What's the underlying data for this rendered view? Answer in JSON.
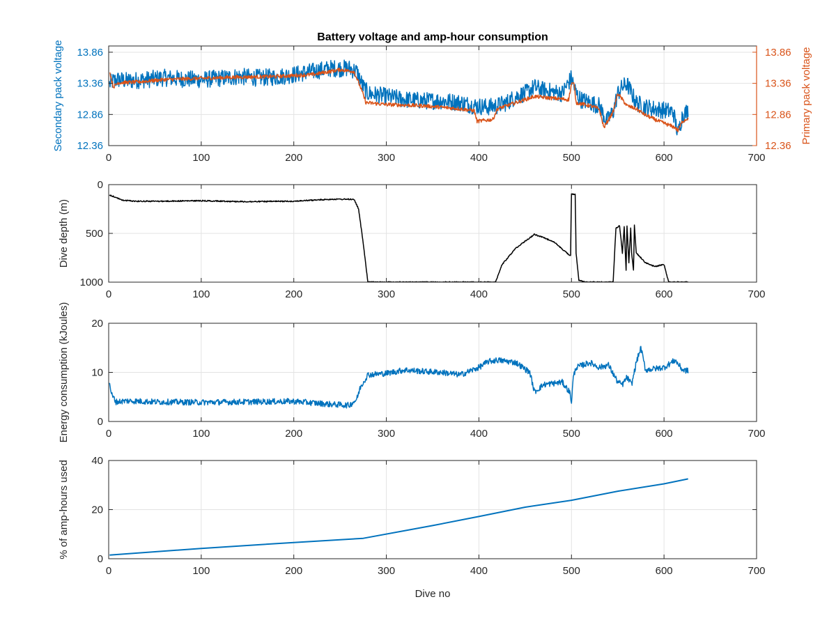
{
  "figure": {
    "title": "Battery voltage and amp-hour consumption"
  },
  "colors": {
    "secondary": "#0072BD",
    "primary": "#D95319",
    "depth": "#000000",
    "axis": "#262626",
    "grid": "#e3e3e3"
  },
  "chart_data": [
    {
      "type": "line",
      "title": "Battery voltage and amp-hour consumption",
      "xlabel": "",
      "ylabel": "Secondary pack voltage",
      "ylabel_right": "Primary pack voltage",
      "xlim": [
        0,
        700
      ],
      "ylim": [
        12.36,
        13.96
      ],
      "xticks": [
        0,
        100,
        200,
        300,
        400,
        500,
        600,
        700
      ],
      "yticks": [
        12.36,
        12.86,
        13.36,
        13.86
      ],
      "ytick_labels": [
        "12.36",
        "12.86",
        "13.36",
        "13.86"
      ],
      "yticks_right": [
        12.36,
        12.86,
        13.36,
        13.86
      ],
      "ytick_labels_right": [
        "12.36",
        "12.86",
        "13.36",
        "13.86"
      ],
      "grid": true,
      "series": [
        {
          "color": "#0072BD",
          "axis": "left",
          "noise": 0.14,
          "x": [
            1,
            5,
            10,
            20,
            40,
            60,
            80,
            100,
            120,
            140,
            160,
            180,
            200,
            220,
            240,
            260,
            268,
            275,
            280,
            300,
            320,
            340,
            360,
            380,
            395,
            410,
            420,
            430,
            440,
            450,
            460,
            470,
            480,
            490,
            500,
            502,
            505,
            510,
            520,
            530,
            538,
            545,
            550,
            555,
            560,
            565,
            570,
            580,
            590,
            600,
            610,
            615,
            620,
            626
          ],
          "y": [
            13.35,
            13.4,
            13.42,
            13.4,
            13.42,
            13.45,
            13.43,
            13.42,
            13.44,
            13.47,
            13.45,
            13.46,
            13.5,
            13.55,
            13.6,
            13.6,
            13.55,
            13.3,
            13.2,
            13.15,
            13.1,
            13.08,
            13.08,
            13.05,
            13.0,
            12.98,
            13.0,
            13.05,
            13.15,
            13.2,
            13.3,
            13.25,
            13.22,
            13.2,
            13.45,
            13.35,
            13.2,
            13.1,
            13.05,
            13.0,
            12.75,
            12.9,
            13.2,
            13.3,
            13.35,
            13.2,
            13.05,
            12.98,
            12.95,
            12.93,
            12.9,
            12.55,
            12.85,
            12.92
          ]
        },
        {
          "color": "#D95319",
          "axis": "right",
          "noise": 0.03,
          "x": [
            1,
            5,
            10,
            30,
            60,
            100,
            140,
            180,
            220,
            250,
            265,
            272,
            278,
            300,
            340,
            380,
            395,
            398,
            415,
            420,
            440,
            460,
            480,
            497,
            500,
            503,
            505,
            520,
            530,
            535,
            545,
            550,
            555,
            560,
            570,
            580,
            590,
            600,
            612,
            615,
            620,
            626
          ],
          "y": [
            13.55,
            13.3,
            13.37,
            13.38,
            13.42,
            13.44,
            13.46,
            13.47,
            13.5,
            13.58,
            13.55,
            13.3,
            13.05,
            13.02,
            13.0,
            12.95,
            12.92,
            12.75,
            12.78,
            12.95,
            13.05,
            13.15,
            13.12,
            13.1,
            13.35,
            13.35,
            13.05,
            13.0,
            12.95,
            12.65,
            12.9,
            13.2,
            13.1,
            13.0,
            12.95,
            12.85,
            12.78,
            12.72,
            12.65,
            12.6,
            12.75,
            12.8
          ]
        }
      ]
    },
    {
      "type": "line",
      "xlabel": "",
      "ylabel": "Dive depth (m)",
      "xlim": [
        0,
        700
      ],
      "ylim": [
        0,
        1000
      ],
      "y_reversed": true,
      "xticks": [
        0,
        100,
        200,
        300,
        400,
        500,
        600,
        700
      ],
      "yticks": [
        0,
        500,
        1000
      ],
      "ytick_labels": [
        "0",
        "500",
        "1000"
      ],
      "grid": true,
      "series": [
        {
          "color": "#000000",
          "noise": 6,
          "x": [
            1,
            5,
            15,
            30,
            60,
            100,
            150,
            200,
            240,
            265,
            270,
            275,
            280,
            300,
            350,
            400,
            418,
            425,
            440,
            460,
            480,
            495,
            499,
            500,
            502,
            504,
            505,
            508,
            515,
            545,
            548,
            552,
            555,
            557,
            559,
            560,
            562,
            564,
            565,
            567,
            568,
            570,
            575,
            580,
            590,
            600,
            605,
            610,
            626
          ],
          "y": [
            110,
            120,
            160,
            170,
            170,
            165,
            175,
            170,
            150,
            150,
            250,
            600,
            1000,
            1000,
            1000,
            1000,
            1000,
            820,
            650,
            510,
            580,
            700,
            730,
            100,
            100,
            100,
            700,
            980,
            1000,
            1000,
            450,
            420,
            700,
            430,
            880,
            420,
            800,
            440,
            700,
            880,
            420,
            700,
            750,
            800,
            840,
            820,
            1000,
            1000,
            1000
          ]
        }
      ]
    },
    {
      "type": "line",
      "xlabel": "",
      "ylabel": "Energy consumption (kJoules)",
      "xlim": [
        0,
        700
      ],
      "ylim": [
        0,
        20
      ],
      "xticks": [
        0,
        100,
        200,
        300,
        400,
        500,
        600,
        700
      ],
      "yticks": [
        0,
        10,
        20
      ],
      "ytick_labels": [
        "0",
        "10",
        "20"
      ],
      "grid": true,
      "series": [
        {
          "color": "#0072BD",
          "noise": 0.6,
          "x": [
            1,
            3,
            8,
            20,
            50,
            100,
            150,
            200,
            240,
            260,
            268,
            272,
            280,
            300,
            320,
            340,
            360,
            380,
            400,
            410,
            420,
            440,
            455,
            460,
            470,
            490,
            498,
            500,
            502,
            505,
            520,
            530,
            540,
            550,
            555,
            560,
            565,
            570,
            575,
            580,
            600,
            612,
            620,
            626
          ],
          "y": [
            8,
            5.5,
            4,
            4.2,
            4,
            3.9,
            4,
            4.1,
            3.5,
            3.3,
            4.5,
            7,
            9.5,
            9.8,
            10.5,
            10.2,
            10,
            9.5,
            11,
            12.2,
            12.5,
            12,
            10,
            6,
            7.5,
            8,
            6,
            4,
            9,
            11,
            12,
            11,
            11.5,
            8,
            7.5,
            9,
            7.5,
            12,
            15,
            10.5,
            11,
            12.5,
            10.5,
            10.3
          ]
        }
      ]
    },
    {
      "type": "line",
      "xlabel": "Dive no",
      "ylabel": "% of amp-hours used",
      "xlim": [
        0,
        700
      ],
      "ylim": [
        0,
        40
      ],
      "xticks": [
        0,
        100,
        200,
        300,
        400,
        500,
        600,
        700
      ],
      "yticks": [
        0,
        20,
        40
      ],
      "ytick_labels": [
        "0",
        "20",
        "40"
      ],
      "grid": true,
      "series": [
        {
          "color": "#0072BD",
          "noise": 0,
          "x": [
            1,
            100,
            200,
            275,
            350,
            400,
            450,
            500,
            550,
            600,
            626
          ],
          "y": [
            1.5,
            4.2,
            6.6,
            8.3,
            13.5,
            17.2,
            21,
            23.8,
            27.5,
            30.5,
            32.5
          ]
        }
      ]
    }
  ]
}
